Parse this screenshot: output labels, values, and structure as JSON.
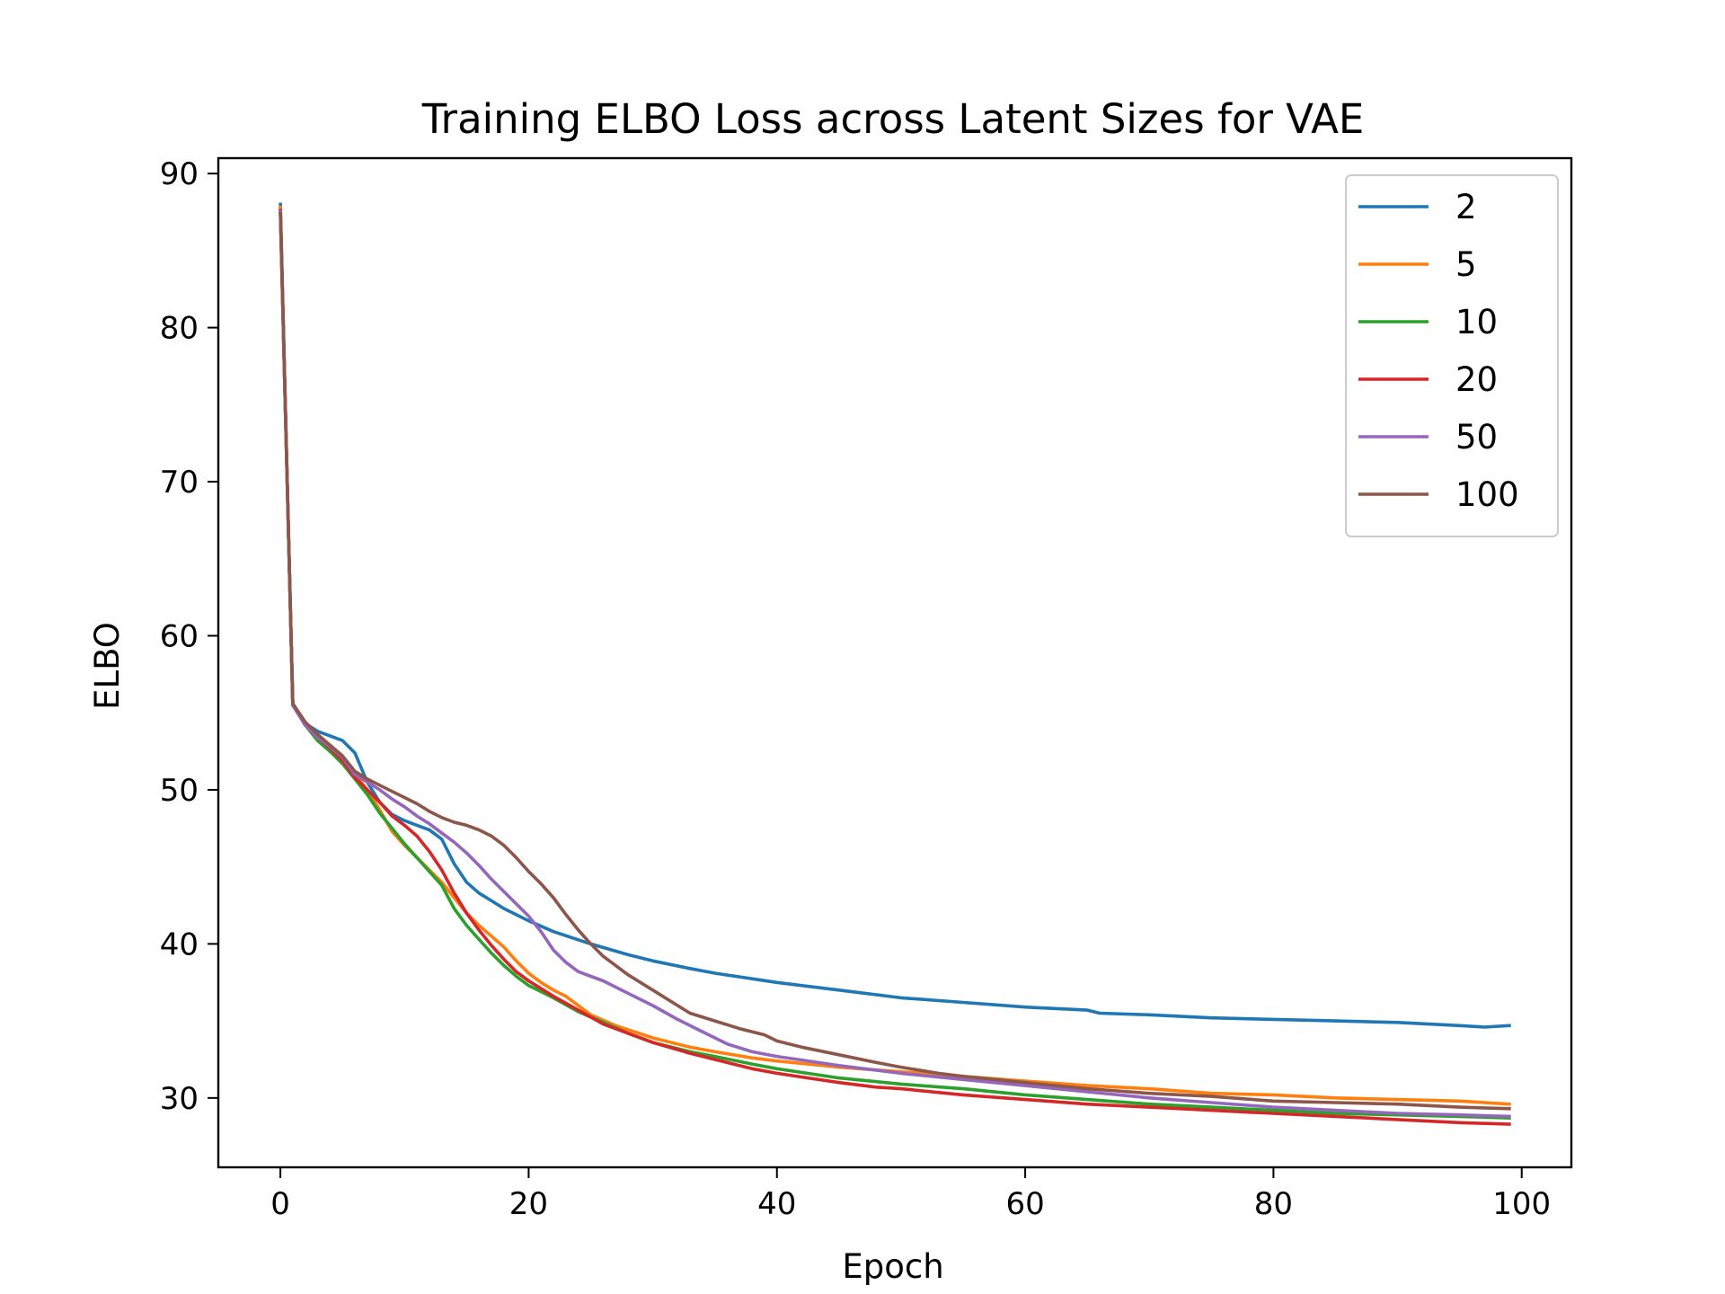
{
  "chart_data": {
    "type": "line",
    "title": "Training ELBO Loss across Latent Sizes for VAE",
    "xlabel": "Epoch",
    "ylabel": "ELBO",
    "xlim": [
      -5,
      104
    ],
    "ylim": [
      25.5,
      91
    ],
    "xticks": [
      0,
      20,
      40,
      60,
      80,
      100
    ],
    "yticks": [
      30,
      40,
      50,
      60,
      70,
      80,
      90
    ],
    "grid": false,
    "legend_position": "top-right",
    "series": [
      {
        "name": "2",
        "color": "#1f77b4",
        "points": [
          [
            0,
            88.0
          ],
          [
            1,
            55.5
          ],
          [
            2,
            54.3
          ],
          [
            3,
            53.8
          ],
          [
            4,
            53.5
          ],
          [
            5,
            53.2
          ],
          [
            6,
            52.4
          ],
          [
            7,
            50.5
          ],
          [
            8,
            49.2
          ],
          [
            9,
            48.4
          ],
          [
            10,
            48.0
          ],
          [
            11,
            47.7
          ],
          [
            12,
            47.4
          ],
          [
            13,
            46.8
          ],
          [
            14,
            45.2
          ],
          [
            15,
            44.0
          ],
          [
            16,
            43.3
          ],
          [
            17,
            42.8
          ],
          [
            18,
            42.3
          ],
          [
            20,
            41.5
          ],
          [
            22,
            40.8
          ],
          [
            25,
            40.0
          ],
          [
            28,
            39.3
          ],
          [
            30,
            38.9
          ],
          [
            33,
            38.4
          ],
          [
            35,
            38.1
          ],
          [
            40,
            37.5
          ],
          [
            45,
            37.0
          ],
          [
            50,
            36.5
          ],
          [
            55,
            36.2
          ],
          [
            60,
            35.9
          ],
          [
            65,
            35.7
          ],
          [
            66,
            35.5
          ],
          [
            70,
            35.4
          ],
          [
            75,
            35.2
          ],
          [
            80,
            35.1
          ],
          [
            85,
            35.0
          ],
          [
            90,
            34.9
          ],
          [
            95,
            34.7
          ],
          [
            97,
            34.6
          ],
          [
            99,
            34.7
          ]
        ]
      },
      {
        "name": "5",
        "color": "#ff7f0e",
        "points": [
          [
            0,
            87.8
          ],
          [
            1,
            55.5
          ],
          [
            2,
            54.3
          ],
          [
            3,
            53.5
          ],
          [
            4,
            52.9
          ],
          [
            5,
            52.2
          ],
          [
            6,
            51.0
          ],
          [
            7,
            50.0
          ],
          [
            8,
            48.7
          ],
          [
            9,
            47.3
          ],
          [
            10,
            46.4
          ],
          [
            11,
            45.6
          ],
          [
            12,
            44.8
          ],
          [
            13,
            44.0
          ],
          [
            14,
            43.0
          ],
          [
            15,
            42.0
          ],
          [
            16,
            41.2
          ],
          [
            17,
            40.5
          ],
          [
            18,
            39.8
          ],
          [
            19,
            38.9
          ],
          [
            20,
            38.1
          ],
          [
            21,
            37.5
          ],
          [
            22,
            37.0
          ],
          [
            23,
            36.6
          ],
          [
            24,
            36.0
          ],
          [
            25,
            35.4
          ],
          [
            27,
            34.7
          ],
          [
            30,
            33.9
          ],
          [
            33,
            33.3
          ],
          [
            35,
            33.0
          ],
          [
            38,
            32.6
          ],
          [
            40,
            32.4
          ],
          [
            45,
            32.0
          ],
          [
            50,
            31.7
          ],
          [
            55,
            31.4
          ],
          [
            60,
            31.1
          ],
          [
            65,
            30.8
          ],
          [
            70,
            30.6
          ],
          [
            75,
            30.3
          ],
          [
            80,
            30.2
          ],
          [
            85,
            30.0
          ],
          [
            90,
            29.9
          ],
          [
            95,
            29.8
          ],
          [
            99,
            29.6
          ]
        ]
      },
      {
        "name": "10",
        "color": "#2ca02c",
        "points": [
          [
            0,
            87.5
          ],
          [
            1,
            55.5
          ],
          [
            2,
            54.2
          ],
          [
            3,
            53.2
          ],
          [
            4,
            52.5
          ],
          [
            5,
            51.7
          ],
          [
            6,
            50.7
          ],
          [
            7,
            49.7
          ],
          [
            8,
            48.5
          ],
          [
            9,
            47.5
          ],
          [
            10,
            46.5
          ],
          [
            11,
            45.6
          ],
          [
            12,
            44.7
          ],
          [
            13,
            43.8
          ],
          [
            14,
            42.3
          ],
          [
            15,
            41.2
          ],
          [
            16,
            40.3
          ],
          [
            17,
            39.4
          ],
          [
            18,
            38.6
          ],
          [
            19,
            37.9
          ],
          [
            20,
            37.3
          ],
          [
            22,
            36.5
          ],
          [
            24,
            35.6
          ],
          [
            26,
            34.9
          ],
          [
            28,
            34.2
          ],
          [
            30,
            33.6
          ],
          [
            33,
            33.0
          ],
          [
            35,
            32.7
          ],
          [
            38,
            32.2
          ],
          [
            40,
            31.9
          ],
          [
            45,
            31.3
          ],
          [
            50,
            30.9
          ],
          [
            55,
            30.6
          ],
          [
            60,
            30.2
          ],
          [
            65,
            29.9
          ],
          [
            70,
            29.6
          ],
          [
            75,
            29.4
          ],
          [
            80,
            29.2
          ],
          [
            85,
            29.0
          ],
          [
            90,
            28.9
          ],
          [
            95,
            28.8
          ],
          [
            99,
            28.7
          ]
        ]
      },
      {
        "name": "20",
        "color": "#d62728",
        "points": [
          [
            0,
            87.6
          ],
          [
            1,
            55.5
          ],
          [
            2,
            54.2
          ],
          [
            3,
            53.4
          ],
          [
            4,
            52.7
          ],
          [
            5,
            51.9
          ],
          [
            6,
            50.8
          ],
          [
            7,
            50.0
          ],
          [
            8,
            49.2
          ],
          [
            9,
            48.3
          ],
          [
            10,
            47.7
          ],
          [
            11,
            47.0
          ],
          [
            12,
            46.0
          ],
          [
            13,
            44.8
          ],
          [
            14,
            43.3
          ],
          [
            15,
            42.0
          ],
          [
            16,
            40.9
          ],
          [
            17,
            39.9
          ],
          [
            18,
            39.0
          ],
          [
            19,
            38.2
          ],
          [
            20,
            37.6
          ],
          [
            22,
            36.6
          ],
          [
            24,
            35.7
          ],
          [
            26,
            34.8
          ],
          [
            28,
            34.2
          ],
          [
            30,
            33.6
          ],
          [
            33,
            32.9
          ],
          [
            35,
            32.5
          ],
          [
            38,
            31.9
          ],
          [
            40,
            31.6
          ],
          [
            45,
            31.0
          ],
          [
            48,
            30.7
          ],
          [
            50,
            30.6
          ],
          [
            55,
            30.2
          ],
          [
            60,
            29.9
          ],
          [
            65,
            29.6
          ],
          [
            70,
            29.4
          ],
          [
            75,
            29.2
          ],
          [
            80,
            29.0
          ],
          [
            85,
            28.8
          ],
          [
            90,
            28.6
          ],
          [
            95,
            28.4
          ],
          [
            99,
            28.3
          ]
        ]
      },
      {
        "name": "50",
        "color": "#9467bd",
        "points": [
          [
            0,
            87.5
          ],
          [
            1,
            55.5
          ],
          [
            2,
            54.2
          ],
          [
            3,
            53.4
          ],
          [
            4,
            52.8
          ],
          [
            5,
            52.1
          ],
          [
            6,
            51.0
          ],
          [
            7,
            50.5
          ],
          [
            8,
            50.0
          ],
          [
            9,
            49.4
          ],
          [
            10,
            48.9
          ],
          [
            11,
            48.3
          ],
          [
            12,
            47.8
          ],
          [
            13,
            47.2
          ],
          [
            14,
            46.6
          ],
          [
            15,
            45.9
          ],
          [
            16,
            45.1
          ],
          [
            17,
            44.2
          ],
          [
            18,
            43.4
          ],
          [
            19,
            42.6
          ],
          [
            20,
            41.8
          ],
          [
            21,
            40.8
          ],
          [
            22,
            39.6
          ],
          [
            23,
            38.8
          ],
          [
            24,
            38.2
          ],
          [
            26,
            37.6
          ],
          [
            28,
            36.8
          ],
          [
            30,
            36.0
          ],
          [
            32,
            35.1
          ],
          [
            34,
            34.3
          ],
          [
            36,
            33.5
          ],
          [
            38,
            33.0
          ],
          [
            40,
            32.7
          ],
          [
            45,
            32.1
          ],
          [
            50,
            31.6
          ],
          [
            55,
            31.2
          ],
          [
            60,
            30.8
          ],
          [
            65,
            30.4
          ],
          [
            70,
            30.0
          ],
          [
            75,
            29.7
          ],
          [
            80,
            29.4
          ],
          [
            85,
            29.2
          ],
          [
            90,
            29.0
          ],
          [
            95,
            28.9
          ],
          [
            99,
            28.8
          ]
        ]
      },
      {
        "name": "100",
        "color": "#8c564b",
        "points": [
          [
            0,
            87.4
          ],
          [
            1,
            55.6
          ],
          [
            2,
            54.4
          ],
          [
            3,
            53.6
          ],
          [
            4,
            52.9
          ],
          [
            5,
            52.2
          ],
          [
            6,
            51.2
          ],
          [
            7,
            50.7
          ],
          [
            8,
            50.3
          ],
          [
            9,
            49.9
          ],
          [
            10,
            49.5
          ],
          [
            11,
            49.1
          ],
          [
            12,
            48.6
          ],
          [
            13,
            48.2
          ],
          [
            14,
            47.9
          ],
          [
            15,
            47.7
          ],
          [
            16,
            47.4
          ],
          [
            17,
            47.0
          ],
          [
            18,
            46.4
          ],
          [
            19,
            45.6
          ],
          [
            20,
            44.7
          ],
          [
            21,
            43.9
          ],
          [
            22,
            43.0
          ],
          [
            23,
            41.9
          ],
          [
            24,
            40.9
          ],
          [
            25,
            40.0
          ],
          [
            26,
            39.2
          ],
          [
            28,
            38.0
          ],
          [
            30,
            37.0
          ],
          [
            32,
            36.0
          ],
          [
            33,
            35.5
          ],
          [
            35,
            35.0
          ],
          [
            37,
            34.5
          ],
          [
            39,
            34.1
          ],
          [
            40,
            33.7
          ],
          [
            42,
            33.3
          ],
          [
            45,
            32.8
          ],
          [
            48,
            32.3
          ],
          [
            50,
            32.0
          ],
          [
            53,
            31.6
          ],
          [
            55,
            31.4
          ],
          [
            60,
            31.0
          ],
          [
            65,
            30.6
          ],
          [
            70,
            30.3
          ],
          [
            75,
            30.1
          ],
          [
            80,
            29.8
          ],
          [
            85,
            29.7
          ],
          [
            90,
            29.6
          ],
          [
            95,
            29.4
          ],
          [
            99,
            29.3
          ]
        ]
      }
    ]
  }
}
